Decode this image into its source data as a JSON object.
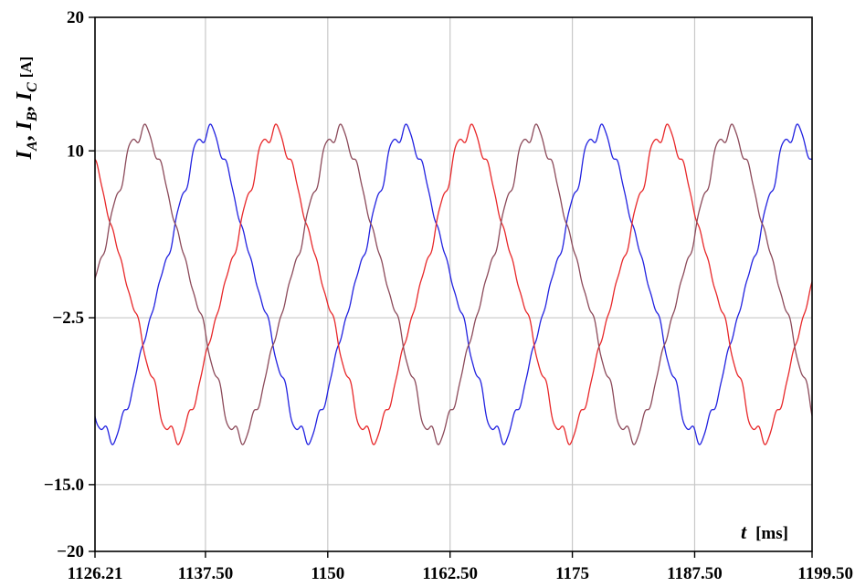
{
  "chart_data": {
    "type": "line",
    "title": "",
    "xlabel": "t",
    "xlabel_unit": "[ms]",
    "ylabel": "I_A, I_B, I_C",
    "ylabel_unit": "[A]",
    "xlim": [
      1126.21,
      1199.5
    ],
    "ylim": [
      -20,
      20
    ],
    "x_tick_labels": [
      "1126.21",
      "1137.50",
      "1150",
      "1162.50",
      "1175",
      "1187.50",
      "1199.50"
    ],
    "x_ticks": [
      1126.21,
      1137.5,
      1150,
      1162.5,
      1175,
      1187.5,
      1199.5
    ],
    "y_tick_labels": [
      "20",
      "10",
      "−2.5",
      "−15.0",
      "−20"
    ],
    "y_ticks": [
      20,
      10,
      -2.5,
      -15.0,
      -20
    ],
    "grid": true,
    "series_color_values": [
      "#2222e0",
      "#e8282a",
      "#8c4a5a"
    ],
    "series": [
      {
        "color": "#2222e0",
        "amplitude": 11.5,
        "period_ms": 20,
        "peaks_at_ms": [
          1137.8,
          1157.8,
          1177.8,
          1197.8
        ],
        "troughs_at_ms": [
          1127.8,
          1147.8,
          1167.8,
          1187.8
        ]
      },
      {
        "color": "#e8282a",
        "amplitude": 11.5,
        "period_ms": 20,
        "peaks_at_ms": [
          1144.5,
          1164.5,
          1184.5
        ],
        "troughs_at_ms": [
          1134.5,
          1154.5,
          1174.5,
          1194.5
        ]
      },
      {
        "color": "#8c4a5a",
        "amplitude": 11.5,
        "period_ms": 20,
        "peaks_at_ms": [
          1131.1,
          1151.1,
          1171.1,
          1191.1
        ],
        "troughs_at_ms": [
          1141.1,
          1161.1,
          1181.1
        ]
      }
    ]
  }
}
